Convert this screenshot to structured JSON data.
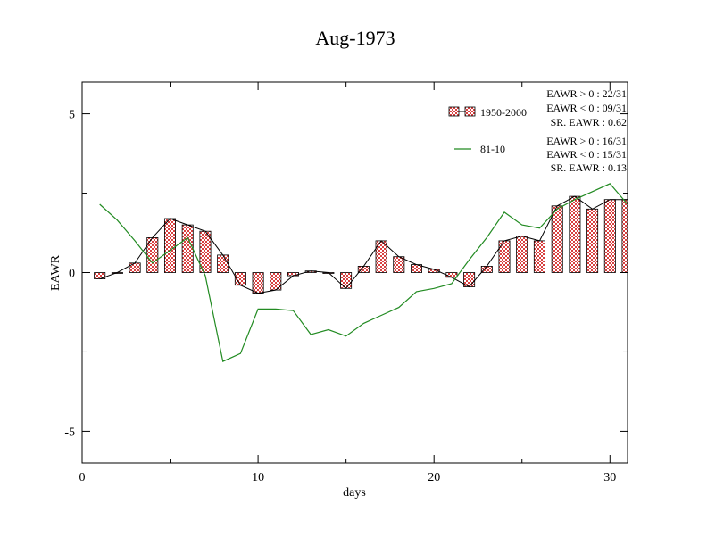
{
  "chart_data": {
    "type": "bar",
    "title": "Aug-1973",
    "xlabel": "days",
    "ylabel": "EAWR",
    "xlim": [
      0,
      31
    ],
    "ylim": [
      -6,
      6
    ],
    "x_ticks": [
      {
        "value": 0,
        "label": "0"
      },
      {
        "value": 10,
        "label": "10"
      },
      {
        "value": 20,
        "label": "20"
      },
      {
        "value": 30,
        "label": "30"
      }
    ],
    "y_ticks": [
      {
        "value": 5,
        "label": "5"
      },
      {
        "value": 0,
        "label": "0"
      },
      {
        "value": -5,
        "label": "-5"
      }
    ],
    "x": [
      1,
      2,
      3,
      4,
      5,
      6,
      7,
      8,
      9,
      10,
      11,
      12,
      13,
      14,
      15,
      16,
      17,
      18,
      19,
      20,
      21,
      22,
      23,
      24,
      25,
      26,
      27,
      28,
      29,
      30,
      31
    ],
    "series": [
      {
        "name": "1950-2000",
        "kind": "bar",
        "color": "#e06060",
        "values": [
          -0.2,
          0.0,
          0.3,
          1.1,
          1.7,
          1.5,
          1.3,
          0.55,
          -0.4,
          -0.65,
          -0.55,
          -0.1,
          0.05,
          0.0,
          -0.5,
          0.2,
          1.0,
          0.5,
          0.25,
          0.1,
          -0.15,
          -0.45,
          0.2,
          1.0,
          1.15,
          1.0,
          2.1,
          2.4,
          2.0,
          2.3,
          2.3
        ]
      },
      {
        "name": "81-10",
        "kind": "line",
        "color": "#228b22",
        "values": [
          2.15,
          1.65,
          1.0,
          0.3,
          0.7,
          1.1,
          -0.1,
          -2.8,
          -2.55,
          -1.15,
          -1.15,
          -1.2,
          -1.95,
          -1.8,
          -2.0,
          -1.6,
          -1.35,
          -1.1,
          -0.6,
          -0.5,
          -0.35,
          0.4,
          1.1,
          1.9,
          1.5,
          1.4,
          2.0,
          2.3,
          2.55,
          2.8,
          2.15
        ]
      }
    ],
    "legend": {
      "placement": "top-right",
      "entries": [
        {
          "label": "1950-2000",
          "stats": [
            "EAWR > 0 : 22/31",
            "EAWR < 0 : 09/31",
            "SR. EAWR :  0.62"
          ]
        },
        {
          "label": "81-10",
          "stats": [
            "EAWR > 0 : 16/31",
            "EAWR < 0 : 15/31",
            "SR. EAWR :  0.13"
          ]
        }
      ]
    },
    "grid": false
  }
}
